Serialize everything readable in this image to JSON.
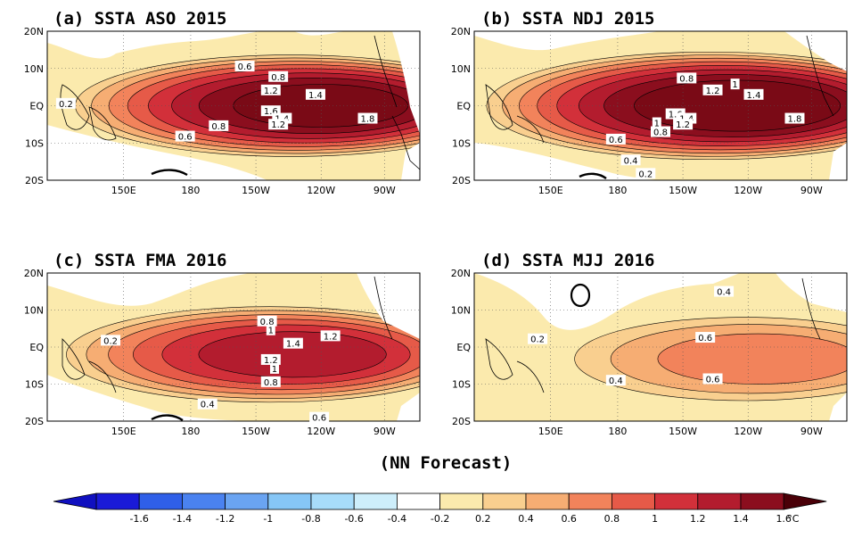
{
  "chart_data": [
    {
      "type": "heatmap",
      "title": "(a) SSTA  ASO 2015",
      "x_ticks": [
        "150E",
        "180",
        "150W",
        "120W",
        "90W"
      ],
      "y_ticks": [
        "20N",
        "10N",
        "EQ",
        "10S",
        "20S"
      ],
      "contour_labels": [
        "0.2",
        "0.6",
        "0.8",
        "1.2",
        "1.4",
        "1.6",
        "1.4",
        "1.2",
        "1.8",
        "0.6",
        "0.8"
      ],
      "max_anomaly": 1.9
    },
    {
      "type": "heatmap",
      "title": "(b) SSTA  NDJ 2015",
      "x_ticks": [
        "150E",
        "180",
        "150W",
        "120W",
        "90W"
      ],
      "y_ticks": [
        "20N",
        "10N",
        "EQ",
        "10S",
        "20S"
      ],
      "contour_labels": [
        "0.8",
        "1.2",
        "1",
        "1.4",
        "1.6",
        "1.4",
        "1.2",
        "1",
        "0.8",
        "1.8",
        "0.6",
        "0.4",
        "0.2"
      ],
      "max_anomaly": 2.0
    },
    {
      "type": "heatmap",
      "title": "(c) SSTA  FMA 2016",
      "x_ticks": [
        "150E",
        "180",
        "150W",
        "120W",
        "90W"
      ],
      "y_ticks": [
        "20N",
        "10N",
        "EQ",
        "10S",
        "20S"
      ],
      "contour_labels": [
        "0.2",
        "0.8",
        "1",
        "1.4",
        "1.2",
        "1.2",
        "1",
        "0.8",
        "0.4",
        "0.6"
      ],
      "max_anomaly": 1.5
    },
    {
      "type": "heatmap",
      "title": "(d) SSTA  MJJ 2016",
      "x_ticks": [
        "150E",
        "180",
        "150W",
        "120W",
        "90W"
      ],
      "y_ticks": [
        "20N",
        "10N",
        "EQ",
        "10S",
        "20S"
      ],
      "contour_labels": [
        "0.2",
        "0.4",
        "0.6",
        "0.4",
        "0.6"
      ],
      "max_anomaly": 0.85
    }
  ],
  "footer": "(NN Forecast)",
  "colorbar": {
    "ticks": [
      "-1.6",
      "-1.4",
      "-1.2",
      "-1",
      "-0.8",
      "-0.6",
      "-0.4",
      "-0.2",
      "0.2",
      "0.4",
      "0.6",
      "0.8",
      "1",
      "1.2",
      "1.4",
      "1.6"
    ],
    "unit": "°C",
    "colors": [
      "#1a1ad8",
      "#2f5fe8",
      "#4a82f0",
      "#6aa4f2",
      "#86c6f6",
      "#a7dcfa",
      "#cdeefb",
      "#ffffff",
      "#fbeaad",
      "#f9cf8f",
      "#f6ad73",
      "#f2835b",
      "#e65a48",
      "#d2303a",
      "#b31c2e",
      "#8b0e1e"
    ]
  }
}
